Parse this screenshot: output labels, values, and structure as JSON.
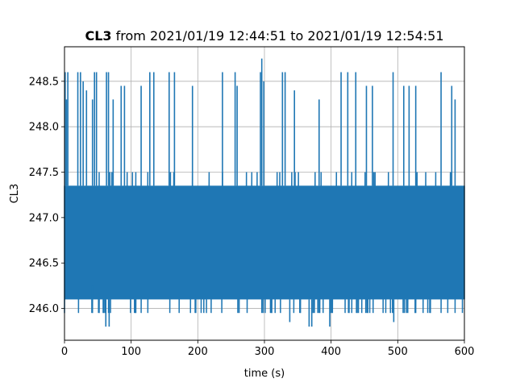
{
  "chart_data": {
    "type": "line",
    "title_bold": "CL3",
    "title_rest": " from 2021/01/19 12:44:51 to 2021/01/19 12:54:51",
    "xlabel": "time (s)",
    "ylabel": "CL3",
    "xlim": [
      0,
      600
    ],
    "ylim": [
      245.65,
      248.88
    ],
    "xticks": [
      0,
      100,
      200,
      300,
      400,
      500,
      600
    ],
    "yticks": [
      246.0,
      246.5,
      247.0,
      247.5,
      248.0,
      248.5
    ],
    "grid": true,
    "series": [
      {
        "color": "#1f77b4",
        "band_low": 246.1,
        "band_high": 247.35,
        "common_low": 245.95,
        "common_high": 248.6,
        "spikes_high": [
          {
            "x": 1,
            "y": 248.6
          },
          {
            "x": 3,
            "y": 248.3
          },
          {
            "x": 5,
            "y": 248.6
          },
          {
            "x": 20,
            "y": 248.6
          },
          {
            "x": 24,
            "y": 248.6
          },
          {
            "x": 28,
            "y": 248.5
          },
          {
            "x": 33,
            "y": 248.4
          },
          {
            "x": 42,
            "y": 248.3
          },
          {
            "x": 45,
            "y": 248.6
          },
          {
            "x": 48,
            "y": 248.6
          },
          {
            "x": 63,
            "y": 248.6
          },
          {
            "x": 66,
            "y": 248.6
          },
          {
            "x": 73,
            "y": 248.3
          },
          {
            "x": 85,
            "y": 248.45
          },
          {
            "x": 90,
            "y": 248.45
          },
          {
            "x": 115,
            "y": 248.45
          },
          {
            "x": 128,
            "y": 248.6
          },
          {
            "x": 134,
            "y": 248.6
          },
          {
            "x": 157,
            "y": 248.6
          },
          {
            "x": 165,
            "y": 248.6
          },
          {
            "x": 192,
            "y": 248.45
          },
          {
            "x": 237,
            "y": 248.6
          },
          {
            "x": 256,
            "y": 248.6
          },
          {
            "x": 259,
            "y": 248.45
          },
          {
            "x": 294,
            "y": 248.6
          },
          {
            "x": 296,
            "y": 248.75
          },
          {
            "x": 299,
            "y": 248.5
          },
          {
            "x": 327,
            "y": 248.6
          },
          {
            "x": 331,
            "y": 248.6
          },
          {
            "x": 345,
            "y": 248.4
          },
          {
            "x": 382,
            "y": 248.3
          },
          {
            "x": 415,
            "y": 248.6
          },
          {
            "x": 425,
            "y": 248.6
          },
          {
            "x": 437,
            "y": 248.6
          },
          {
            "x": 453,
            "y": 248.45
          },
          {
            "x": 462,
            "y": 248.45
          },
          {
            "x": 493,
            "y": 248.6
          },
          {
            "x": 509,
            "y": 248.45
          },
          {
            "x": 517,
            "y": 248.45
          },
          {
            "x": 527,
            "y": 248.45
          },
          {
            "x": 565,
            "y": 248.6
          },
          {
            "x": 581,
            "y": 248.45
          },
          {
            "x": 586,
            "y": 248.3
          }
        ],
        "spikes_low": [
          {
            "x": 42,
            "y": 246.25
          },
          {
            "x": 62,
            "y": 245.8
          },
          {
            "x": 67,
            "y": 245.8
          },
          {
            "x": 338,
            "y": 245.85
          },
          {
            "x": 367,
            "y": 245.8
          },
          {
            "x": 371,
            "y": 245.8
          },
          {
            "x": 398,
            "y": 245.8
          },
          {
            "x": 494,
            "y": 245.85
          }
        ]
      }
    ]
  }
}
